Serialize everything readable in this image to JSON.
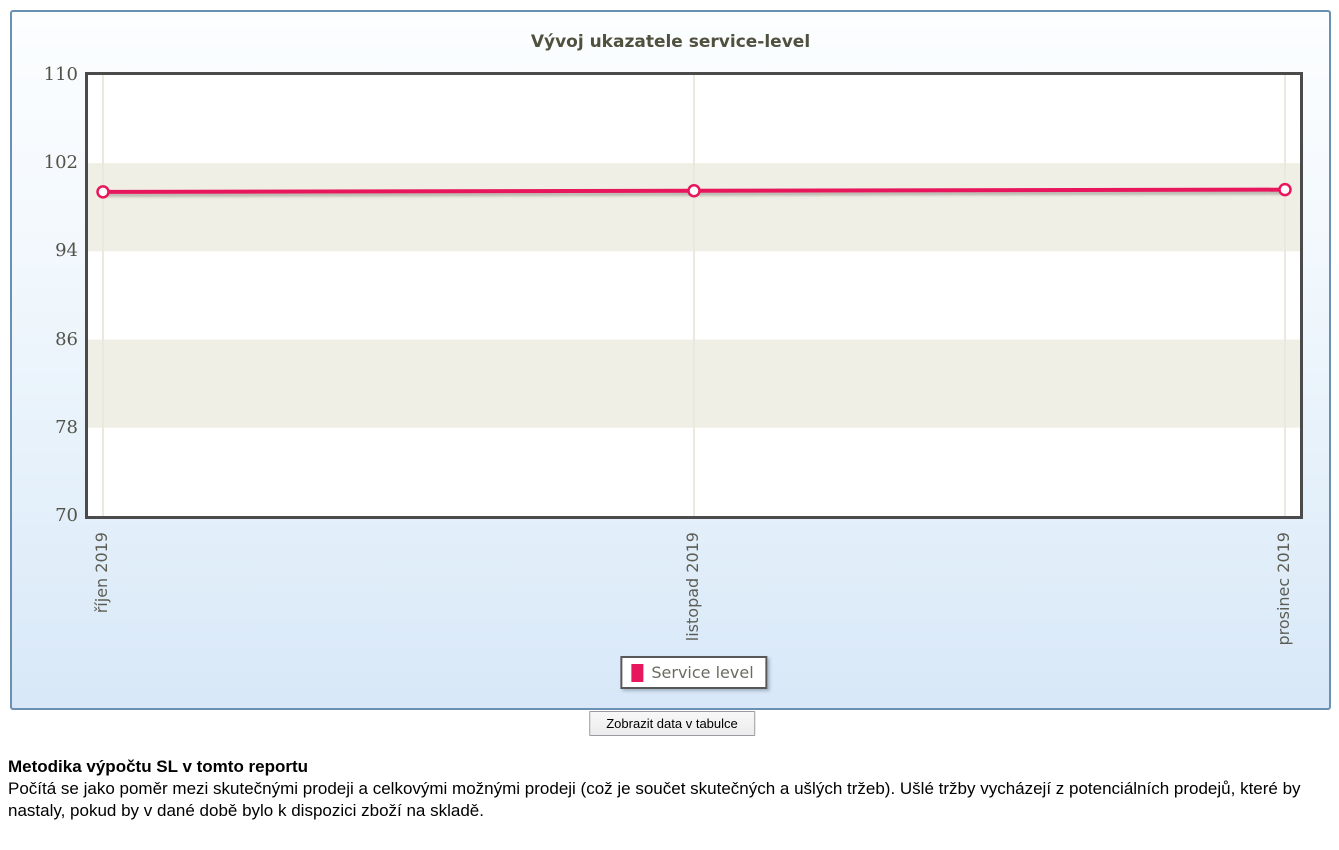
{
  "panel": {
    "title": "Vývoj ukazatele service-level"
  },
  "legend": {
    "label": "Service level",
    "swatch_color": "#e8175d"
  },
  "button": {
    "label": "Zobrazit data v tabulce"
  },
  "methodology": {
    "heading": "Metodika výpočtu SL v tomto reportu",
    "body": "Počítá se jako poměr mezi skutečnými prodeji a celkovými možnými prodeji (což je součet skutečných a ušlých tržeb). Ušlé tržby vycházejí z potenciálních prodejů, které by nastaly, pokud by v dané době bylo k dispozici zboží na skladě."
  },
  "colors": {
    "accent_pink": "#e8175d",
    "panel_border": "#6a90b2",
    "plot_border": "#4b4b4b",
    "band_beige": "#efefe5",
    "gridline": "#e9e9de",
    "axis_text": "#53534a"
  },
  "chart_data": {
    "type": "line",
    "title": "Vývoj ukazatele service-level",
    "categories": [
      "říjen 2019",
      "listopad 2019",
      "prosinec 2019"
    ],
    "series": [
      {
        "name": "Service level",
        "color": "#e8175d",
        "values": [
          99.4,
          99.5,
          99.6
        ]
      }
    ],
    "ylim": [
      70,
      110
    ],
    "yticks": [
      110,
      102,
      94,
      86,
      78,
      70
    ],
    "xlabel": "",
    "ylabel": "",
    "grid": "alternating-horizontal-bands-and-vertical-gridlines",
    "legend_position": "bottom",
    "marker": "open-circle"
  }
}
